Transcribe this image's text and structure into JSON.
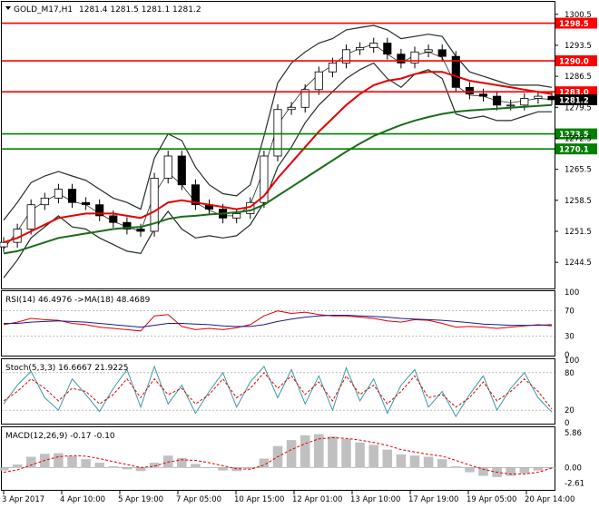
{
  "header": {
    "symbol": "GOLD_M17,H1",
    "ohlc": "1281.4 1281.5 1281.1 1281.2"
  },
  "colors": {
    "red_level": "#ff0000",
    "green_level": "#008000",
    "ma_red": "#e60000",
    "ma_green": "#1a6b1a",
    "bands": "#203020",
    "candle": "#000000",
    "rsi": "#e00000",
    "rsi_ma": "#1b1b8a",
    "stoch_main": "#3a9aa6",
    "stoch_signal": "#e00000",
    "macd_hist": "#c0c0c0",
    "macd_signal": "#e00000",
    "current_tag": "#000000"
  },
  "chart_data": [
    {
      "type": "line",
      "title": "GOLD_M17,H1",
      "subtitle": "1281.4 1281.5 1281.1 1281.2",
      "ylim": [
        1239.0,
        1302.5
      ],
      "y_ticks": [
        "1300.5",
        "1293.5",
        "1286.5",
        "1279.5",
        "1272.5",
        "1265.5",
        "1258.5",
        "1251.5",
        "1244.5"
      ],
      "y_tick_values": [
        1300.5,
        1293.5,
        1286.5,
        1279.5,
        1272.5,
        1265.5,
        1258.5,
        1251.5,
        1244.5
      ],
      "x_ticks": [
        "3 Apr 2017",
        "4 Apr 10:00",
        "5 Apr 19:00",
        "7 Apr 05:00",
        "10 Apr 15:00",
        "12 Apr 01:00",
        "13 Apr 10:00",
        "17 Apr 19:00",
        "19 Apr 05:00",
        "20 Apr 14:00"
      ],
      "x": [
        0,
        4,
        8,
        12,
        16,
        20,
        24,
        28,
        32,
        36,
        40,
        44,
        48,
        52,
        56,
        60,
        64,
        68,
        72,
        76,
        80,
        84,
        88,
        92,
        96,
        100,
        104,
        108,
        112,
        116,
        120,
        124,
        128,
        132,
        136,
        140,
        144,
        148,
        152,
        156,
        160
      ],
      "close": [
        1249.0,
        1252.0,
        1257.5,
        1259.0,
        1261.0,
        1258.0,
        1257.5,
        1255.0,
        1253.5,
        1252.0,
        1251.5,
        1263.5,
        1268.5,
        1262.0,
        1257.5,
        1256.5,
        1254.5,
        1255.5,
        1258.0,
        1268.5,
        1279.0,
        1279.5,
        1283.5,
        1287.5,
        1289.5,
        1292.5,
        1293.0,
        1294.0,
        1291.5,
        1289.5,
        1292.0,
        1292.5,
        1291.0,
        1284.0,
        1282.5,
        1282.0,
        1280.0,
        1280.0,
        1281.5,
        1282.0,
        1281.2
      ],
      "levels": [
        {
          "value": 1298.5,
          "label": "1298.5",
          "color": "red"
        },
        {
          "value": 1290.0,
          "label": "1290.0",
          "color": "red"
        },
        {
          "value": 1283.0,
          "label": "1283.0",
          "color": "red"
        },
        {
          "value": 1273.5,
          "label": "1273.5",
          "color": "green"
        },
        {
          "value": 1270.1,
          "label": "1270.1",
          "color": "green"
        }
      ],
      "current_price": {
        "value": 1281.2,
        "label": "1281.2"
      },
      "ma_red": [
        1249.0,
        1250.0,
        1251.5,
        1253.0,
        1254.5,
        1255.0,
        1255.5,
        1255.5,
        1255.5,
        1255.0,
        1254.5,
        1256.0,
        1258.0,
        1258.5,
        1258.0,
        1257.5,
        1257.0,
        1256.5,
        1257.0,
        1259.5,
        1263.5,
        1267.0,
        1270.5,
        1274.0,
        1277.0,
        1280.0,
        1282.5,
        1284.5,
        1285.5,
        1286.0,
        1287.0,
        1287.5,
        1287.5,
        1286.5,
        1285.5,
        1285.0,
        1284.5,
        1284.0,
        1283.5,
        1283.0,
        1282.5
      ],
      "ma_green": [
        1246.5,
        1247.0,
        1248.0,
        1249.0,
        1250.0,
        1250.5,
        1251.0,
        1251.5,
        1252.0,
        1252.3,
        1252.5,
        1253.3,
        1254.3,
        1254.8,
        1255.0,
        1255.3,
        1255.5,
        1255.8,
        1256.2,
        1257.5,
        1259.5,
        1261.5,
        1263.5,
        1265.5,
        1267.5,
        1269.5,
        1271.3,
        1273.0,
        1274.3,
        1275.5,
        1276.5,
        1277.3,
        1278.0,
        1278.5,
        1278.8,
        1279.0,
        1279.2,
        1279.4,
        1279.6,
        1279.8,
        1280.0
      ],
      "bb_upper": [
        1254.0,
        1258.0,
        1262.5,
        1264.0,
        1265.0,
        1264.0,
        1263.0,
        1261.0,
        1259.0,
        1258.0,
        1256.5,
        1268.0,
        1273.5,
        1272.0,
        1266.0,
        1262.0,
        1260.0,
        1259.5,
        1262.0,
        1273.0,
        1285.0,
        1289.5,
        1292.0,
        1294.0,
        1295.0,
        1297.0,
        1297.5,
        1298.0,
        1297.0,
        1295.0,
        1295.5,
        1296.0,
        1295.5,
        1291.0,
        1287.5,
        1286.5,
        1285.5,
        1284.5,
        1284.5,
        1284.5,
        1284.0
      ],
      "bb_lower": [
        1241.0,
        1245.0,
        1250.0,
        1252.5,
        1255.0,
        1252.5,
        1252.0,
        1250.0,
        1248.5,
        1247.0,
        1246.5,
        1252.0,
        1256.0,
        1252.0,
        1250.0,
        1250.5,
        1250.0,
        1250.5,
        1253.0,
        1258.0,
        1266.0,
        1270.5,
        1276.0,
        1280.0,
        1283.0,
        1286.0,
        1288.0,
        1289.5,
        1286.0,
        1284.0,
        1287.0,
        1288.0,
        1286.0,
        1278.0,
        1277.0,
        1277.5,
        1276.5,
        1276.5,
        1277.5,
        1278.5,
        1278.5
      ]
    },
    {
      "type": "line",
      "title": "RSI(14) 46.4976 ->MA(18) 48.4689",
      "ylim": [
        0,
        100
      ],
      "y_ticks": [
        "100",
        "70",
        "30",
        "0"
      ],
      "y_tick_values": [
        100,
        70,
        30,
        0
      ],
      "series": [
        {
          "name": "RSI(14)",
          "values": [
            48,
            52,
            58,
            56,
            55,
            50,
            48,
            44,
            42,
            40,
            38,
            62,
            64,
            45,
            40,
            42,
            40,
            43,
            48,
            62,
            70,
            66,
            68,
            64,
            62,
            62,
            60,
            58,
            54,
            52,
            56,
            55,
            50,
            44,
            45,
            44,
            42,
            44,
            46,
            48,
            46
          ]
        },
        {
          "name": "MA(18)",
          "values": [
            50,
            50,
            52,
            53,
            54,
            53,
            52,
            50,
            48,
            46,
            44,
            47,
            50,
            50,
            49,
            48,
            46,
            45,
            45,
            48,
            53,
            57,
            60,
            62,
            63,
            63,
            62,
            61,
            60,
            58,
            57,
            56,
            55,
            53,
            51,
            49,
            48,
            47,
            47,
            47,
            48
          ]
        }
      ]
    },
    {
      "type": "line",
      "title": "Stoch(5,3,3) 16.6667 21.9225",
      "ylim": [
        0,
        100
      ],
      "y_ticks": [
        "100",
        "80",
        "20",
        "0"
      ],
      "y_tick_values": [
        100,
        80,
        20,
        0
      ],
      "series": [
        {
          "name": "%K",
          "values": [
            30,
            60,
            82,
            40,
            20,
            70,
            45,
            18,
            55,
            85,
            25,
            90,
            30,
            60,
            15,
            50,
            80,
            25,
            65,
            90,
            40,
            85,
            30,
            75,
            20,
            88,
            35,
            70,
            15,
            60,
            85,
            25,
            50,
            10,
            45,
            75,
            20,
            55,
            80,
            40,
            17
          ]
        },
        {
          "name": "%D",
          "values": [
            35,
            50,
            70,
            55,
            35,
            55,
            50,
            30,
            45,
            70,
            40,
            70,
            45,
            55,
            30,
            45,
            70,
            40,
            55,
            80,
            55,
            75,
            45,
            65,
            35,
            75,
            45,
            60,
            30,
            50,
            75,
            40,
            45,
            25,
            40,
            65,
            35,
            50,
            70,
            50,
            22
          ]
        }
      ]
    },
    {
      "type": "bar",
      "title": "MACD(12,26,9) -0.17 -0.10",
      "ylim": [
        -3.6,
        6.6
      ],
      "y_ticks": [
        "5.86",
        "0.00",
        "-2.61"
      ],
      "y_tick_values": [
        5.86,
        0.0,
        -2.61
      ],
      "series": [
        {
          "name": "MACD",
          "values": [
            -0.5,
            0.5,
            1.8,
            2.3,
            2.4,
            1.9,
            1.4,
            0.8,
            0.2,
            -0.3,
            -0.6,
            0.8,
            2.0,
            1.6,
            0.6,
            0.0,
            -0.5,
            -0.6,
            -0.2,
            1.5,
            3.6,
            4.6,
            5.4,
            5.6,
            5.2,
            4.8,
            4.2,
            3.8,
            3.0,
            2.2,
            2.0,
            1.8,
            1.4,
            0.2,
            -0.8,
            -1.4,
            -1.6,
            -1.4,
            -1.0,
            -0.5,
            -0.17
          ]
        },
        {
          "name": "Signal",
          "values": [
            -0.8,
            -0.4,
            0.4,
            1.2,
            1.8,
            2.0,
            1.9,
            1.5,
            1.0,
            0.5,
            0.0,
            0.2,
            0.9,
            1.3,
            1.2,
            0.8,
            0.3,
            -0.2,
            -0.3,
            0.4,
            1.8,
            3.0,
            4.0,
            4.8,
            5.0,
            4.9,
            4.6,
            4.2,
            3.7,
            3.0,
            2.6,
            2.2,
            1.9,
            1.2,
            0.4,
            -0.3,
            -0.8,
            -1.1,
            -1.1,
            -0.8,
            -0.1
          ]
        }
      ]
    }
  ]
}
